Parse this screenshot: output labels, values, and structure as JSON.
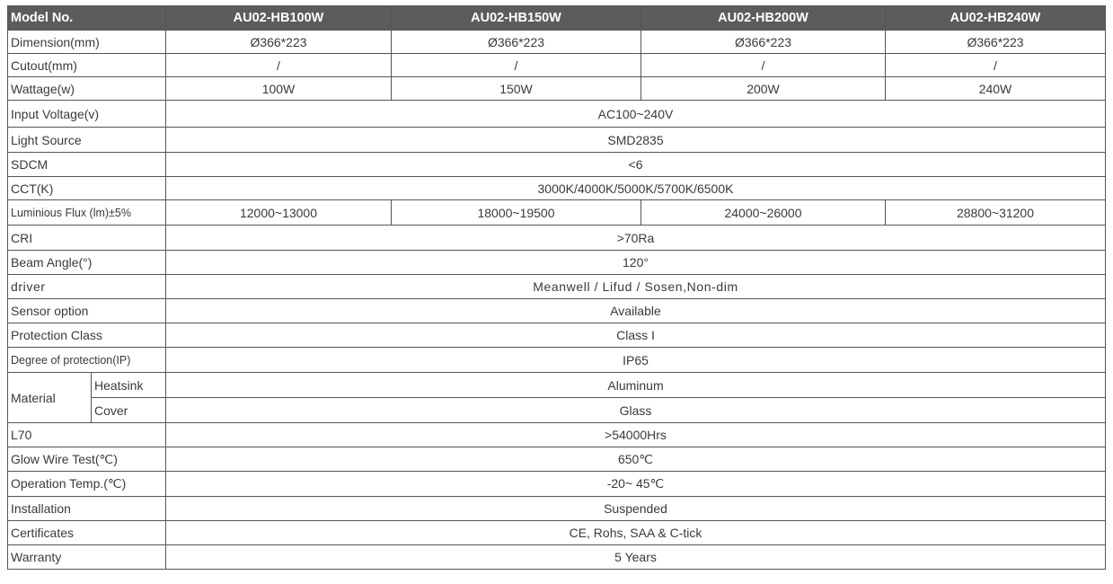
{
  "header": {
    "label": "Model No.",
    "models": [
      "AU02-HB100W",
      "AU02-HB150W",
      "AU02-HB200W",
      "AU02-HB240W"
    ]
  },
  "rows": {
    "dimension": {
      "label": "Dimension(mm)",
      "values": [
        "Ø366*223",
        "Ø366*223",
        "Ø366*223",
        "Ø366*223"
      ]
    },
    "cutout": {
      "label": "Cutout(mm)",
      "values": [
        "/",
        "/",
        "/",
        "/"
      ]
    },
    "wattage": {
      "label": "Wattage(w)",
      "values": [
        "100W",
        "150W",
        "200W",
        "240W"
      ]
    },
    "input_voltage": {
      "label": "Input Voltage(v)",
      "value": "AC100~240V"
    },
    "light_source": {
      "label": "Light Source",
      "value": "SMD2835"
    },
    "sdcm": {
      "label": "SDCM",
      "value": "<6"
    },
    "cct": {
      "label": "CCT(K)",
      "value": "3000K/4000K/5000K/5700K/6500K"
    },
    "luminous_flux": {
      "label": "Luminious Flux (lm)±5%",
      "values": [
        "12000~13000",
        "18000~19500",
        "24000~26000",
        "28800~31200"
      ]
    },
    "cri": {
      "label": "CRI",
      "value": ">70Ra"
    },
    "beam_angle": {
      "label": "Beam Angle(°)",
      "value": "120°"
    },
    "driver": {
      "label": "driver",
      "value": "Meanwell / Lifud / Sosen,Non-dim"
    },
    "sensor": {
      "label": "Sensor option",
      "value": "Available"
    },
    "protection_class": {
      "label": "Protection Class",
      "value": "Class I"
    },
    "ip": {
      "label": "Degree of protection(IP)",
      "value": "IP65"
    },
    "material": {
      "label": "Material",
      "heatsink": {
        "label": "Heatsink",
        "value": "Aluminum"
      },
      "cover": {
        "label": "Cover",
        "value": "Glass"
      }
    },
    "l70": {
      "label": "L70",
      "value": ">54000Hrs"
    },
    "glow_wire": {
      "label": "Glow Wire Test(℃)",
      "value": "650℃"
    },
    "operation_temp": {
      "label": "Operation Temp.(℃)",
      "value": "-20~ 45℃"
    },
    "installation": {
      "label": "Installation",
      "value": "Suspended"
    },
    "certificates": {
      "label": "Certificates",
      "value": "CE, Rohs, SAA & C-tick"
    },
    "warranty": {
      "label": "Warranty",
      "value": "5 Years"
    }
  }
}
